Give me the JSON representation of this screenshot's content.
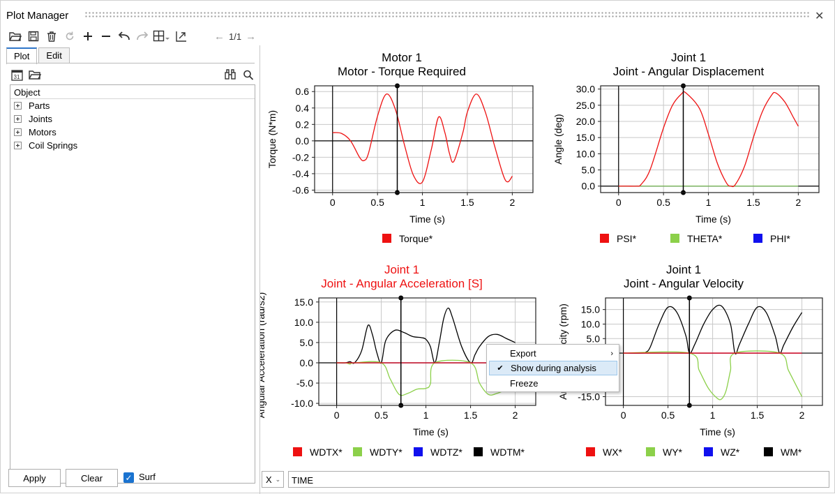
{
  "window": {
    "title": "Plot Manager"
  },
  "toolbar": {
    "pager": "1/1",
    "icons": [
      "open-folder-icon",
      "save-icon",
      "delete-icon",
      "refresh-icon",
      "add-icon",
      "remove-icon",
      "undo-icon",
      "redo-icon",
      "layout-grid-icon",
      "export-plot-icon"
    ]
  },
  "left_panel": {
    "tabs": [
      {
        "label": "Plot",
        "active": true
      },
      {
        "label": "Edit",
        "active": false
      }
    ],
    "tree_header": "Object",
    "tree_items": [
      "Parts",
      "Joints",
      "Motors",
      "Coil Springs"
    ],
    "buttons": {
      "apply": "Apply",
      "clear": "Clear"
    },
    "surf": {
      "label": "Surf",
      "checked": true
    }
  },
  "x_selector": {
    "axis": "X",
    "value": "TIME"
  },
  "context_menu": {
    "items": [
      {
        "label": "Export",
        "has_submenu": true,
        "checked": false,
        "highlighted": false
      },
      {
        "label": "Show during analysis",
        "has_submenu": false,
        "checked": true,
        "highlighted": true
      },
      {
        "label": "Freeze",
        "has_submenu": false,
        "checked": false,
        "highlighted": false
      }
    ]
  },
  "colors": {
    "accent": "#2f76c9",
    "highlight_title": "#ee1111",
    "red": "#ee1111",
    "green": "#8cd04a",
    "blue": "#1010ee",
    "black": "#000000"
  },
  "chart_data": [
    {
      "type": "line",
      "title": "Motor 1",
      "subtitle": "Motor - Torque Required",
      "title_color": "#000000",
      "xlabel": "Time (s)",
      "ylabel": "Torque (N*m)",
      "xlim": [
        -0.2,
        2.23
      ],
      "ylim": [
        -0.63,
        0.67
      ],
      "xticks": [
        0,
        0.5,
        1,
        1.5,
        2
      ],
      "xtick_labels": [
        "0",
        "0.5",
        "1",
        "1.5",
        "2"
      ],
      "yticks": [
        -0.6,
        -0.4,
        -0.2,
        0,
        0.2,
        0.4,
        0.6
      ],
      "ytick_labels": [
        "-0.6",
        "-0.4",
        "-0.2",
        "0.0",
        "0.2",
        "0.4",
        "0.6"
      ],
      "cursor_x": 0.72,
      "grid": true,
      "legend_position": "bottom",
      "series": [
        {
          "name": "Torque*",
          "color": "#ee1111",
          "x": [
            0,
            0.1,
            0.2,
            0.3,
            0.35,
            0.4,
            0.5,
            0.6,
            0.7,
            0.8,
            0.9,
            1.0,
            1.1,
            1.18,
            1.25,
            1.3,
            1.35,
            1.45,
            1.5,
            1.6,
            1.7,
            1.8,
            1.9,
            1.95,
            2.0
          ],
          "y": [
            0.1,
            0.09,
            0.0,
            -0.2,
            -0.24,
            -0.15,
            0.3,
            0.57,
            0.38,
            -0.05,
            -0.42,
            -0.5,
            -0.1,
            0.29,
            0.1,
            -0.15,
            -0.25,
            0.1,
            0.35,
            0.57,
            0.35,
            -0.05,
            -0.42,
            -0.5,
            -0.43
          ]
        }
      ]
    },
    {
      "type": "line",
      "title": "Joint 1",
      "subtitle": "Joint - Angular Displacement",
      "title_color": "#000000",
      "xlabel": "Time (s)",
      "ylabel": "Angle (deg)",
      "xlim": [
        -0.2,
        2.23
      ],
      "ylim": [
        -2,
        31
      ],
      "xticks": [
        0,
        0.5,
        1,
        1.5,
        2
      ],
      "xtick_labels": [
        "0",
        "0.5",
        "1",
        "1.5",
        "2"
      ],
      "yticks": [
        0,
        5,
        10,
        15,
        20,
        25,
        30
      ],
      "ytick_labels": [
        "0.0",
        "5.0",
        "10.0",
        "15.0",
        "20.0",
        "25.0",
        "30.0"
      ],
      "cursor_x": 0.72,
      "grid": true,
      "legend_position": "bottom",
      "series": [
        {
          "name": "PSI*",
          "color": "#ee1111",
          "x": [
            0,
            0.1,
            0.2,
            0.25,
            0.35,
            0.5,
            0.6,
            0.7,
            0.75,
            0.9,
            1.0,
            1.1,
            1.2,
            1.25,
            1.3,
            1.4,
            1.5,
            1.6,
            1.7,
            1.75,
            1.85,
            1.95,
            2.0
          ],
          "y": [
            0,
            0,
            0,
            0.5,
            5,
            18,
            25,
            28.5,
            28.8,
            24,
            16,
            7,
            1,
            0,
            0.5,
            6,
            15,
            23,
            28,
            28.8,
            26,
            21,
            18.5
          ]
        },
        {
          "name": "THETA*",
          "color": "#8cd04a",
          "x": [
            0,
            2
          ],
          "y": [
            0,
            0
          ]
        },
        {
          "name": "PHI*",
          "color": "#1010ee",
          "x": [
            0,
            2
          ],
          "y": [
            0,
            0
          ]
        }
      ]
    },
    {
      "type": "line",
      "title": "Joint 1",
      "subtitle": "Joint - Angular Acceleration [S]",
      "title_color": "#ee1111",
      "xlabel": "Time (s)",
      "ylabel": "Angular Acceleration (rad/s2)",
      "xlim": [
        -0.2,
        2.23
      ],
      "ylim": [
        -10.5,
        16
      ],
      "xticks": [
        0,
        0.5,
        1,
        1.5,
        2
      ],
      "xtick_labels": [
        "0",
        "0.5",
        "1",
        "1.5",
        "2"
      ],
      "yticks": [
        -10,
        -5,
        0,
        5,
        10,
        15
      ],
      "ytick_labels": [
        "-10.0",
        "-5.0",
        "0.0",
        "5.0",
        "10.0",
        "15.0"
      ],
      "cursor_x": 0.72,
      "grid": true,
      "legend_position": "bottom",
      "series": [
        {
          "name": "WDTX*",
          "color": "#ee1111",
          "x": [
            0,
            2
          ],
          "y": [
            0,
            0
          ]
        },
        {
          "name": "WDTY*",
          "color": "#8cd04a",
          "x": [
            0,
            0.1,
            0.15,
            0.2,
            0.5,
            0.6,
            0.7,
            0.8,
            0.9,
            1.0,
            1.05,
            1.1,
            1.5,
            1.6,
            1.7,
            1.8,
            1.9,
            2.0
          ],
          "y": [
            0,
            0,
            -0.3,
            0,
            0,
            -4,
            -7.8,
            -7.5,
            -6.5,
            -6.3,
            -5.2,
            0,
            0,
            -5,
            -7.8,
            -7.5,
            -6.5,
            -5
          ]
        },
        {
          "name": "WDTZ*",
          "color": "#1010ee",
          "x": [
            0,
            2
          ],
          "y": [
            0,
            0
          ]
        },
        {
          "name": "WDTM*",
          "color": "#000000",
          "x": [
            0,
            0.1,
            0.15,
            0.2,
            0.28,
            0.35,
            0.4,
            0.45,
            0.5,
            0.55,
            0.65,
            0.75,
            0.85,
            0.95,
            1.0,
            1.05,
            1.1,
            1.15,
            1.2,
            1.25,
            1.3,
            1.4,
            1.5,
            1.55,
            1.6,
            1.7,
            1.8,
            1.9,
            2.0
          ],
          "y": [
            0,
            0,
            0.3,
            0,
            3,
            9.2,
            7,
            2.5,
            0,
            5.5,
            8,
            7.5,
            6.5,
            6.2,
            5.8,
            4,
            0,
            5,
            11,
            13.5,
            11,
            4,
            0,
            2,
            4,
            6.5,
            7,
            6,
            5
          ]
        }
      ]
    },
    {
      "type": "line",
      "title": "Joint 1",
      "subtitle": "Joint - Angular Velocity",
      "title_color": "#000000",
      "xlabel": "Time (s)",
      "ylabel": "Angular Velocity (rpm)",
      "xlim": [
        -0.2,
        2.23
      ],
      "ylim": [
        -18,
        19
      ],
      "xticks": [
        0,
        0.5,
        1,
        1.5,
        2
      ],
      "xtick_labels": [
        "0",
        "0.5",
        "1",
        "1.5",
        "2"
      ],
      "yticks": [
        -15,
        0,
        5,
        10,
        15
      ],
      "ytick_labels": [
        "-15.0",
        "0.0",
        "5.0",
        "10.0",
        "15.0"
      ],
      "cursor_x": 0.74,
      "grid": true,
      "legend_position": "bottom",
      "series": [
        {
          "name": "WX*",
          "color": "#ee1111",
          "x": [
            0,
            2
          ],
          "y": [
            0,
            0
          ]
        },
        {
          "name": "WY*",
          "color": "#8cd04a",
          "x": [
            0,
            0.74,
            0.85,
            0.95,
            1.05,
            1.1,
            1.15,
            1.2,
            1.25,
            1.75,
            1.85,
            1.95,
            2.0
          ],
          "y": [
            0,
            0,
            -6,
            -12,
            -15.5,
            -15.8,
            -13,
            -6,
            0,
            0,
            -6,
            -12,
            -15
          ]
        },
        {
          "name": "WZ*",
          "color": "#1010ee",
          "x": [
            0,
            2
          ],
          "y": [
            0,
            0
          ]
        },
        {
          "name": "WM*",
          "color": "#000000",
          "x": [
            0,
            0.2,
            0.25,
            0.3,
            0.4,
            0.5,
            0.6,
            0.7,
            0.74,
            0.8,
            0.9,
            1.0,
            1.1,
            1.2,
            1.25,
            1.3,
            1.4,
            1.5,
            1.6,
            1.7,
            1.75,
            1.8,
            1.9,
            2.0
          ],
          "y": [
            0,
            0,
            0.3,
            2,
            10,
            15.8,
            14,
            6,
            0,
            3,
            10,
            15,
            16.2,
            10,
            0,
            3,
            10,
            15.8,
            14,
            6,
            0,
            3,
            9,
            14
          ]
        }
      ]
    }
  ]
}
